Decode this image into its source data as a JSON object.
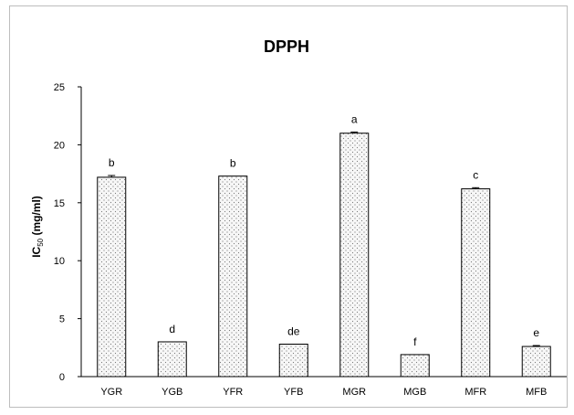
{
  "chart_data": {
    "type": "bar",
    "title": "DPPH",
    "ylabel_main": "IC",
    "ylabel_sub": "50",
    "ylabel_unit": " (mg/ml)",
    "xlabel": "",
    "categories": [
      "YGR",
      "YGB",
      "YFR",
      "YFB",
      "MGR",
      "MGB",
      "MFR",
      "MFB"
    ],
    "values": [
      17.2,
      3.0,
      17.3,
      2.8,
      21.0,
      1.9,
      16.2,
      2.6
    ],
    "errors": [
      0.15,
      0.0,
      0.0,
      0.0,
      0.1,
      0.0,
      0.1,
      0.08
    ],
    "significance_letters": [
      "b",
      "d",
      "b",
      "de",
      "a",
      "f",
      "c",
      "e"
    ],
    "ylim": [
      0,
      25
    ],
    "yticks": [
      "0",
      "5",
      "10",
      "15",
      "20",
      "25"
    ],
    "grid": false,
    "legend": "none",
    "bar_fill": "#f4f4f4",
    "bar_stroke": "#000000"
  }
}
